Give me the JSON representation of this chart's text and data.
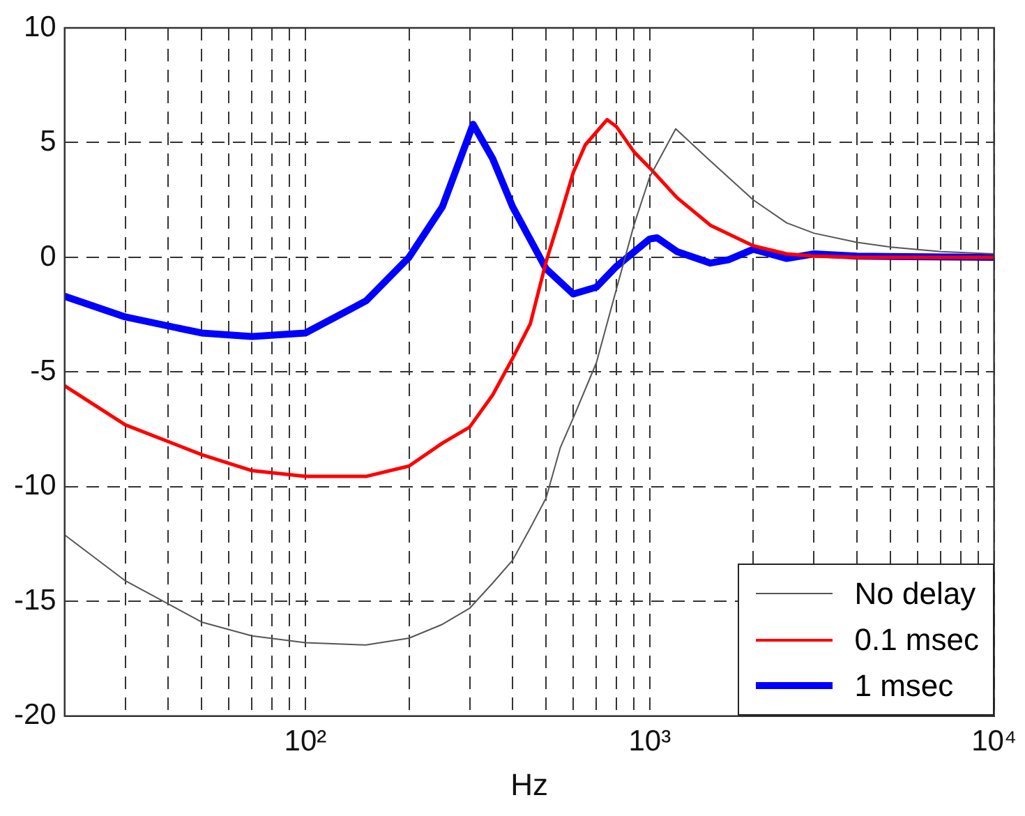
{
  "chart_data": {
    "type": "line",
    "xlabel": "Hz",
    "log": "x",
    "grid": true,
    "legend": "bottom right",
    "marker": "none",
    "line_style": "solid",
    "xlim": [
      20,
      10000
    ],
    "ylim": [
      -20,
      10
    ],
    "xticks": [
      {
        "value": 20,
        "label": null
      },
      {
        "value": 30,
        "label": null
      },
      {
        "value": 40,
        "label": null
      },
      {
        "value": 50,
        "label": null
      },
      {
        "value": 60,
        "label": null
      },
      {
        "value": 70,
        "label": null
      },
      {
        "value": 80,
        "label": null
      },
      {
        "value": 90,
        "label": null
      },
      {
        "value": 100,
        "label": "10²"
      },
      {
        "value": 200,
        "label": null
      },
      {
        "value": 300,
        "label": null
      },
      {
        "value": 400,
        "label": null
      },
      {
        "value": 500,
        "label": null
      },
      {
        "value": 600,
        "label": null
      },
      {
        "value": 700,
        "label": null
      },
      {
        "value": 800,
        "label": null
      },
      {
        "value": 900,
        "label": null
      },
      {
        "value": 1000,
        "label": "10³"
      },
      {
        "value": 2000,
        "label": null
      },
      {
        "value": 3000,
        "label": null
      },
      {
        "value": 4000,
        "label": null
      },
      {
        "value": 5000,
        "label": null
      },
      {
        "value": 6000,
        "label": null
      },
      {
        "value": 7000,
        "label": null
      },
      {
        "value": 8000,
        "label": null
      },
      {
        "value": 9000,
        "label": null
      },
      {
        "value": 10000,
        "label": "10⁴"
      }
    ],
    "yticks": [
      -20,
      -15,
      -10,
      -5,
      0,
      5,
      10
    ],
    "series": [
      {
        "name": "No delay",
        "color": "#555555",
        "x": [
          20,
          30,
          50,
          70,
          100,
          150,
          200,
          250,
          300,
          350,
          400,
          450,
          500,
          550,
          600,
          700,
          800,
          900,
          1000,
          1190,
          1500,
          2000,
          2500,
          3000,
          4000,
          5000,
          7000,
          10000
        ],
        "values": [
          -12.1,
          -14.1,
          -15.9,
          -16.5,
          -16.8,
          -16.9,
          -16.6,
          -16,
          -15.3,
          -14.2,
          -13.2,
          -11.8,
          -10.5,
          -8.3,
          -7,
          -4.6,
          -1.4,
          1.4,
          3.5,
          5.6,
          4.2,
          2.5,
          1.5,
          1.05,
          0.65,
          0.45,
          0.25,
          0.15
        ]
      },
      {
        "name": "0.1 msec",
        "color": "#ff0000",
        "x": [
          20,
          30,
          50,
          70,
          100,
          150,
          200,
          250,
          300,
          350,
          400,
          450,
          500,
          550,
          600,
          650,
          752,
          800,
          900,
          1000,
          1200,
          1500,
          2000,
          2500,
          3000,
          4000,
          10000
        ],
        "values": [
          -5.6,
          -7.3,
          -8.6,
          -9.3,
          -9.55,
          -9.55,
          -9.1,
          -8.1,
          -7.4,
          -6,
          -4.4,
          -2.9,
          -0.2,
          1.8,
          3.7,
          4.9,
          6,
          5.7,
          4.6,
          3.9,
          2.6,
          1.4,
          0.5,
          0.15,
          0.05,
          0,
          0
        ]
      },
      {
        "name": "1 msec",
        "color": "#0000ff",
        "x": [
          20,
          30,
          50,
          70,
          100,
          150,
          200,
          250,
          307,
          350,
          400,
          500,
          600,
          700,
          800,
          1000,
          1050,
          1200,
          1500,
          1700,
          2000,
          2500,
          3000,
          4000,
          10000
        ],
        "values": [
          -1.7,
          -2.6,
          -3.3,
          -3.45,
          -3.3,
          -1.9,
          0,
          2.2,
          5.8,
          4.3,
          2.2,
          -0.5,
          -1.6,
          -1.3,
          -0.4,
          0.8,
          0.85,
          0.25,
          -0.25,
          -0.1,
          0.35,
          -0.05,
          0.15,
          0.05,
          0
        ]
      }
    ]
  }
}
